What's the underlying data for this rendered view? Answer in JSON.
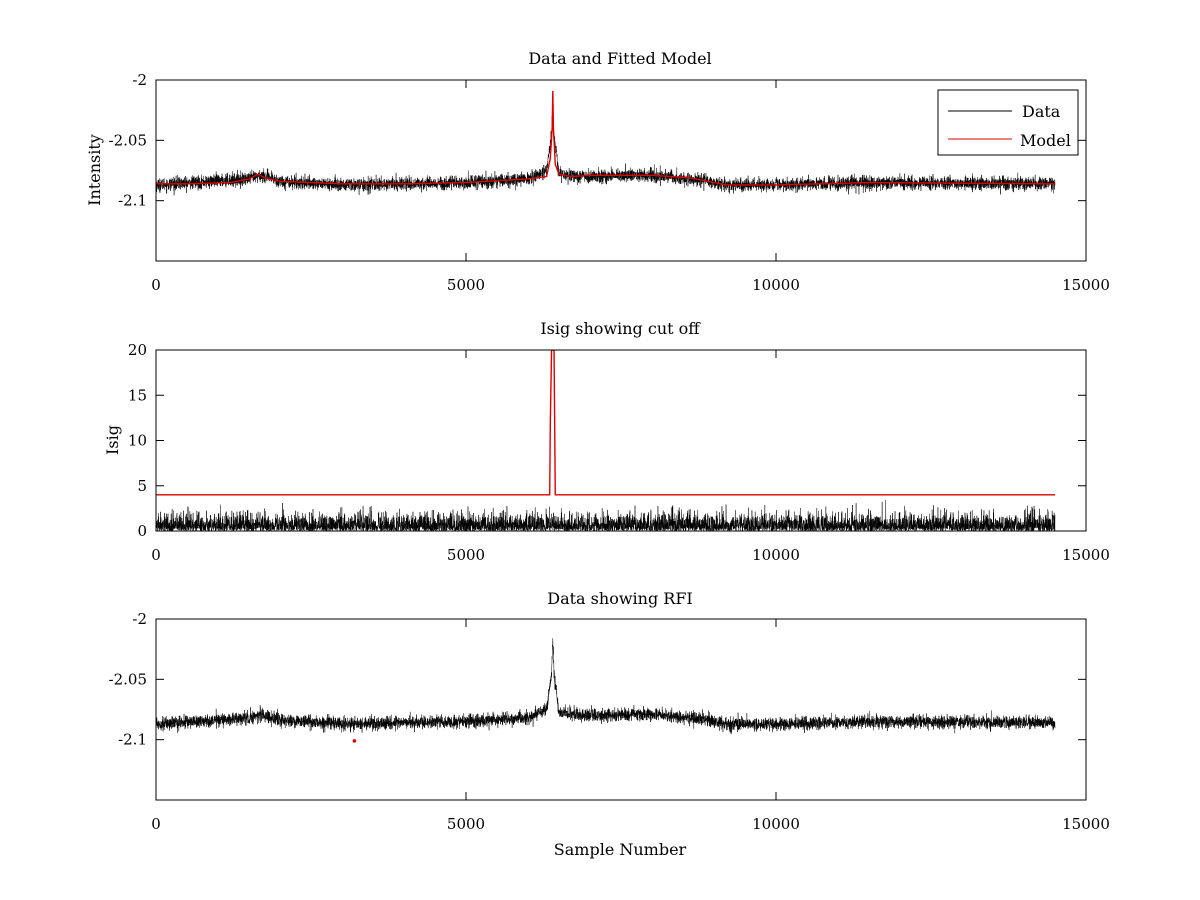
{
  "chart_data": [
    {
      "type": "line",
      "title": "Data and Fitted Model",
      "xlabel": "",
      "ylabel": "Intensity",
      "xlim": [
        0,
        15000
      ],
      "ylim": [
        -2.15,
        -2.0
      ],
      "xticks": [
        0,
        5000,
        10000,
        15000
      ],
      "xtick_labels": [
        "0",
        "5000",
        "10000",
        "15000"
      ],
      "yticks": [
        -2.0,
        -2.05,
        -2.1
      ],
      "ytick_labels": [
        "-2",
        "-2.05",
        "-2.1"
      ],
      "grid": false,
      "legend": {
        "position": "top-right",
        "entries": [
          "Data",
          "Model"
        ]
      },
      "series": [
        {
          "name": "Data",
          "color": "#000000",
          "kind": "noisy",
          "n_samples": 14500,
          "noise_amplitude": 0.0045,
          "baseline_points": [
            [
              0,
              -2.087
            ],
            [
              1500,
              -2.082
            ],
            [
              1700,
              -2.079
            ],
            [
              2000,
              -2.084
            ],
            [
              3000,
              -2.087
            ],
            [
              5000,
              -2.085
            ],
            [
              6000,
              -2.082
            ],
            [
              6300,
              -2.075
            ],
            [
              6380,
              -2.045
            ],
            [
              6400,
              -2.025
            ],
            [
              6420,
              -2.045
            ],
            [
              6500,
              -2.078
            ],
            [
              7000,
              -2.08
            ],
            [
              8000,
              -2.079
            ],
            [
              8800,
              -2.083
            ],
            [
              9200,
              -2.087
            ],
            [
              10000,
              -2.087
            ],
            [
              11500,
              -2.085
            ],
            [
              14500,
              -2.086
            ]
          ]
        },
        {
          "name": "Model",
          "color": "#dd0000",
          "kind": "smooth",
          "points": [
            [
              0,
              -2.086
            ],
            [
              500,
              -2.086
            ],
            [
              1200,
              -2.085
            ],
            [
              1500,
              -2.082
            ],
            [
              1650,
              -2.078
            ],
            [
              1750,
              -2.081
            ],
            [
              2000,
              -2.084
            ],
            [
              3000,
              -2.086
            ],
            [
              4000,
              -2.086
            ],
            [
              5000,
              -2.085
            ],
            [
              6000,
              -2.082
            ],
            [
              6300,
              -2.08
            ],
            [
              6360,
              -2.065
            ],
            [
              6390,
              -2.04
            ],
            [
              6400,
              -2.009
            ],
            [
              6410,
              -2.04
            ],
            [
              6440,
              -2.07
            ],
            [
              6500,
              -2.078
            ],
            [
              6700,
              -2.08
            ],
            [
              7000,
              -2.079
            ],
            [
              8000,
              -2.079
            ],
            [
              8600,
              -2.081
            ],
            [
              9200,
              -2.087
            ],
            [
              10000,
              -2.087
            ],
            [
              11500,
              -2.085
            ],
            [
              14500,
              -2.086
            ]
          ]
        }
      ]
    },
    {
      "type": "line",
      "title": "Isig showing cut off",
      "xlabel": "",
      "ylabel": "Isig",
      "xlim": [
        0,
        15000
      ],
      "ylim": [
        0,
        20
      ],
      "xticks": [
        0,
        5000,
        10000,
        15000
      ],
      "xtick_labels": [
        "0",
        "5000",
        "10000",
        "15000"
      ],
      "yticks": [
        0,
        5,
        10,
        15,
        20
      ],
      "ytick_labels": [
        "0",
        "5",
        "10",
        "15",
        "20"
      ],
      "grid": false,
      "series": [
        {
          "name": "Isig",
          "color": "#000000",
          "kind": "abs-noise",
          "n_samples": 14500,
          "noise_amplitude": 1.1,
          "max_value": 3.8
        },
        {
          "name": "Cut off",
          "color": "#dd0000",
          "kind": "smooth",
          "points": [
            [
              0,
              4
            ],
            [
              6350,
              4
            ],
            [
              6360,
              12
            ],
            [
              6380,
              20
            ],
            [
              6420,
              20
            ],
            [
              6440,
              4
            ],
            [
              14500,
              4
            ]
          ]
        }
      ]
    },
    {
      "type": "line",
      "title": "Data showing RFI",
      "xlabel": "Sample Number",
      "ylabel": "",
      "xlim": [
        0,
        15000
      ],
      "ylim": [
        -2.15,
        -2.0
      ],
      "xticks": [
        0,
        5000,
        10000,
        15000
      ],
      "xtick_labels": [
        "0",
        "5000",
        "10000",
        "15000"
      ],
      "yticks": [
        -2.0,
        -2.05,
        -2.1
      ],
      "ytick_labels": [
        "-2",
        "-2.05",
        "-2.1"
      ],
      "grid": false,
      "series": [
        {
          "name": "Data",
          "color": "#000000",
          "kind": "noisy",
          "n_samples": 14500,
          "noise_amplitude": 0.0045,
          "baseline_points": [
            [
              0,
              -2.087
            ],
            [
              1500,
              -2.082
            ],
            [
              1700,
              -2.079
            ],
            [
              2000,
              -2.084
            ],
            [
              3000,
              -2.087
            ],
            [
              5000,
              -2.085
            ],
            [
              6000,
              -2.082
            ],
            [
              6300,
              -2.075
            ],
            [
              6380,
              -2.045
            ],
            [
              6400,
              -2.016
            ],
            [
              6420,
              -2.045
            ],
            [
              6500,
              -2.078
            ],
            [
              7000,
              -2.08
            ],
            [
              8000,
              -2.079
            ],
            [
              8800,
              -2.083
            ],
            [
              9200,
              -2.087
            ],
            [
              10000,
              -2.087
            ],
            [
              11500,
              -2.085
            ],
            [
              14500,
              -2.086
            ]
          ]
        },
        {
          "name": "RFI",
          "color": "#dd0000",
          "kind": "markers",
          "points": [
            [
              3200,
              -2.101
            ]
          ]
        }
      ]
    }
  ]
}
